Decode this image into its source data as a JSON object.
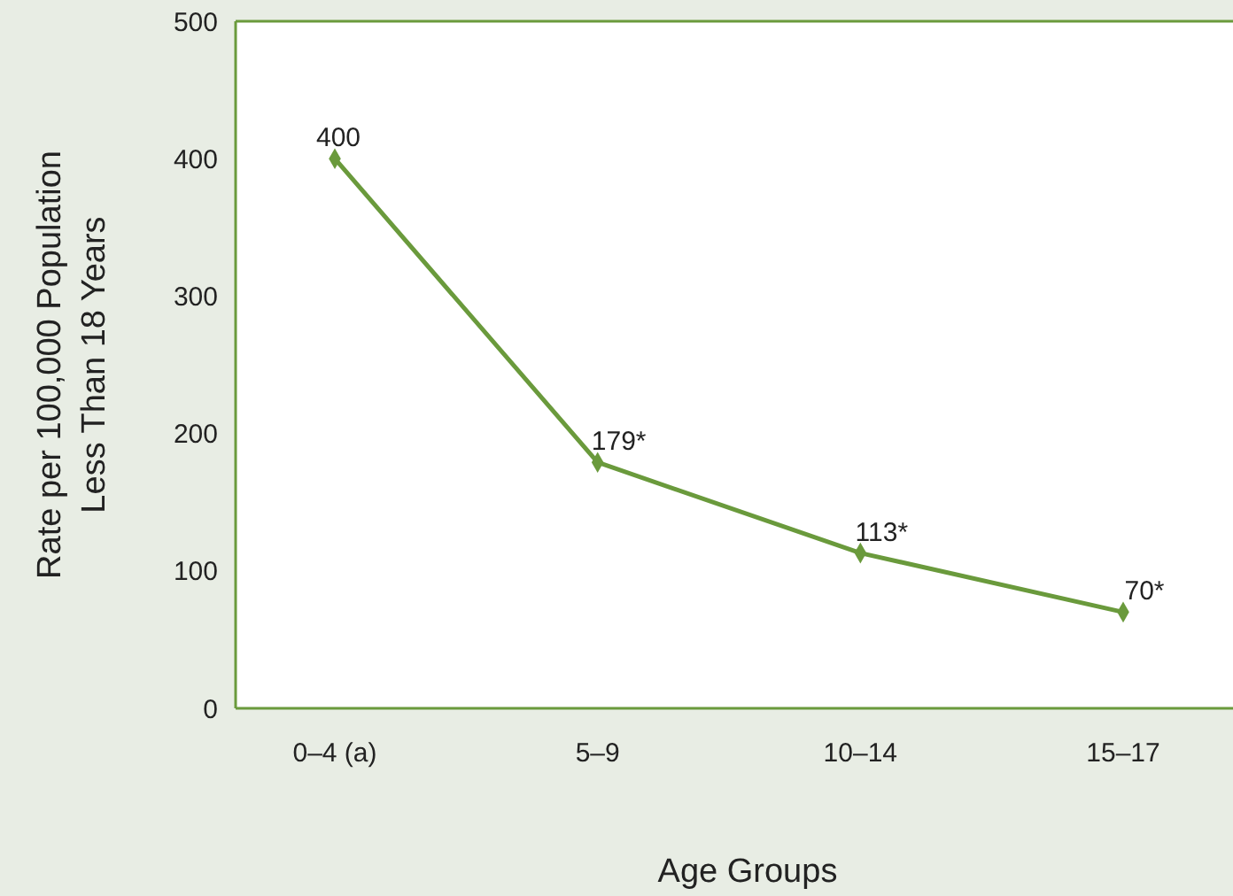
{
  "chart_data": {
    "type": "line",
    "xlabel": "Age Groups",
    "ylabel": "Rate per 100,000 Population\nLess Than 18 Years",
    "categories": [
      "0–4 (a)",
      "5–9",
      "10–14",
      "15–17"
    ],
    "series": [
      {
        "color": "#6a9a3c",
        "values": [
          400,
          179,
          113,
          70
        ],
        "value_labels": [
          "400",
          "179*",
          "113*",
          "70*"
        ]
      }
    ],
    "ylim": [
      0,
      500
    ],
    "yticks": [
      0,
      100,
      200,
      300,
      400,
      500
    ],
    "grid": false,
    "marker": "diamond",
    "line_style": "solid"
  }
}
